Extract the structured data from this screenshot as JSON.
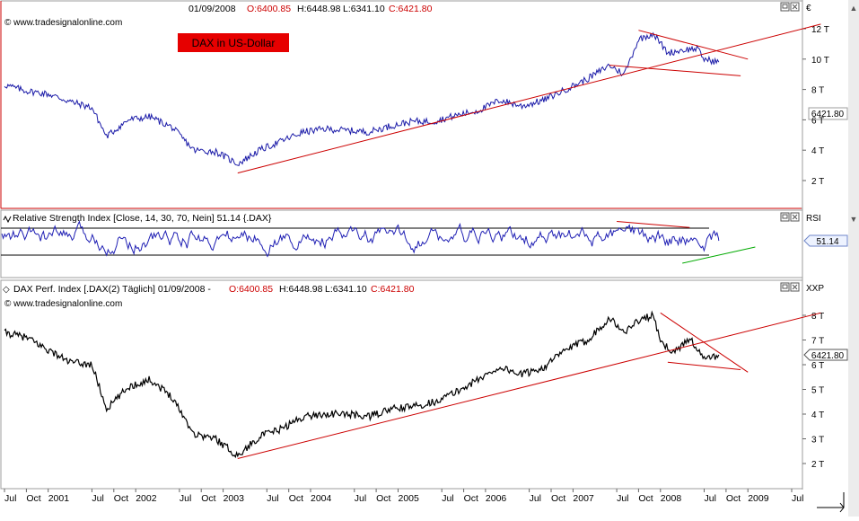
{
  "header": {
    "date": "01/09/2008",
    "open": "O:6400.85",
    "high": "H:6448.98",
    "low": "L:6341.10",
    "close": "C:6421.80",
    "watermark": "© www.tradesignalonline.com",
    "title_box": "DAX in US-Dollar"
  },
  "rsi_panel": {
    "title": "Relative Strength Index [Close, 14, 30, 70, Nein] 51.14 {.DAX}",
    "axis_title": "RSI",
    "value_tag": "51.14"
  },
  "perf_panel": {
    "title_prefix": "DAX Perf. Index [.DAX(2)  Täglich] 01/09/2008 - ",
    "open": "O:6400.85",
    "high": "H:6448.98",
    "low": "L:6341.10",
    "close": "C:6421.80",
    "axis_title": "XXP",
    "watermark": "© www.tradesignalonline.com",
    "value_tag": "6421.80"
  },
  "usd_panel": {
    "axis_title": "€",
    "value_tag": "6421.80"
  },
  "colors": {
    "usd_line": "#1a1aa8",
    "perf_line": "#000000",
    "trendline": "#cc0000",
    "rsi_line": "#1f1fb4",
    "rsi_support": "#00aa00",
    "title_box_bg": "#e60000",
    "title_box_text": "#000000",
    "ohlc_values": "#cc0000"
  },
  "icons": [
    "panel-maximize-icon",
    "panel-close-icon",
    "scroll-up-icon",
    "scroll-down-icon",
    "resize-corner-icon",
    "rsi-wave-icon",
    "perf-diamond-icon"
  ],
  "chart_data": [
    {
      "type": "line",
      "title": "DAX in US-Dollar",
      "y_ticks": [
        "2 T",
        "4 T",
        "6 T",
        "8 T",
        "10 T",
        "12 T"
      ],
      "ylim": [
        2,
        12
      ],
      "last_value": "6421.80",
      "x_ticks": [
        "Jul",
        "Oct",
        "2001",
        "Jul",
        "Oct",
        "2002",
        "Jul",
        "Oct",
        "2003",
        "Jul",
        "Oct",
        "2004",
        "Jul",
        "Oct",
        "2005",
        "Jul",
        "Oct",
        "2006",
        "Jul",
        "Oct",
        "2007",
        "Jul",
        "Oct",
        "2008",
        "Jul",
        "Oct",
        "2009",
        "Jul"
      ],
      "series": [
        {
          "values": [
            {
              "x": "2000-07",
              "y": 8.3
            },
            {
              "x": "2000-10",
              "y": 7.9
            },
            {
              "x": "2001-01",
              "y": 7.7
            },
            {
              "x": "2001-04",
              "y": 7.2
            },
            {
              "x": "2001-07",
              "y": 6.8
            },
            {
              "x": "2001-09",
              "y": 4.9
            },
            {
              "x": "2001-12",
              "y": 6.0
            },
            {
              "x": "2002-03",
              "y": 6.2
            },
            {
              "x": "2002-06",
              "y": 5.5
            },
            {
              "x": "2002-09",
              "y": 4.0
            },
            {
              "x": "2002-12",
              "y": 3.9
            },
            {
              "x": "2003-03",
              "y": 3.1
            },
            {
              "x": "2003-06",
              "y": 4.0
            },
            {
              "x": "2003-09",
              "y": 4.6
            },
            {
              "x": "2003-12",
              "y": 5.2
            },
            {
              "x": "2004-03",
              "y": 5.4
            },
            {
              "x": "2004-06",
              "y": 5.3
            },
            {
              "x": "2004-09",
              "y": 5.2
            },
            {
              "x": "2004-12",
              "y": 5.6
            },
            {
              "x": "2005-03",
              "y": 5.9
            },
            {
              "x": "2005-06",
              "y": 5.9
            },
            {
              "x": "2005-09",
              "y": 6.3
            },
            {
              "x": "2005-12",
              "y": 6.6
            },
            {
              "x": "2006-03",
              "y": 7.3
            },
            {
              "x": "2006-06",
              "y": 6.9
            },
            {
              "x": "2006-09",
              "y": 7.3
            },
            {
              "x": "2006-12",
              "y": 8.0
            },
            {
              "x": "2007-03",
              "y": 8.7
            },
            {
              "x": "2007-06",
              "y": 9.6
            },
            {
              "x": "2007-08",
              "y": 9.0
            },
            {
              "x": "2007-10",
              "y": 11.3
            },
            {
              "x": "2007-12",
              "y": 11.7
            },
            {
              "x": "2008-02",
              "y": 10.4
            },
            {
              "x": "2008-04",
              "y": 10.6
            },
            {
              "x": "2008-06",
              "y": 10.7
            },
            {
              "x": "2008-07",
              "y": 10.0
            },
            {
              "x": "2008-09",
              "y": 9.8
            }
          ]
        }
      ]
    },
    {
      "type": "line",
      "title": "Relative Strength Index [Close, 14, 30, 70, Nein] 51.14 {.DAX}",
      "levels": [
        30,
        70
      ],
      "ylim": [
        0,
        100
      ],
      "last_value": 51.14
    },
    {
      "type": "line",
      "title": "DAX Perf. Index [.DAX(2)  Täglich]",
      "y_ticks": [
        "2 T",
        "3 T",
        "4 T",
        "5 T",
        "6 T",
        "7 T",
        "8 T"
      ],
      "ylim": [
        2,
        8
      ],
      "last_value": "6421.80",
      "series": [
        {
          "values": [
            {
              "x": "2000-07",
              "y": 7.3
            },
            {
              "x": "2000-10",
              "y": 7.1
            },
            {
              "x": "2001-01",
              "y": 6.6
            },
            {
              "x": "2001-04",
              "y": 6.1
            },
            {
              "x": "2001-07",
              "y": 6.0
            },
            {
              "x": "2001-09",
              "y": 4.2
            },
            {
              "x": "2001-12",
              "y": 5.1
            },
            {
              "x": "2002-03",
              "y": 5.4
            },
            {
              "x": "2002-06",
              "y": 4.7
            },
            {
              "x": "2002-09",
              "y": 3.2
            },
            {
              "x": "2002-12",
              "y": 3.0
            },
            {
              "x": "2003-03",
              "y": 2.3
            },
            {
              "x": "2003-06",
              "y": 3.1
            },
            {
              "x": "2003-09",
              "y": 3.4
            },
            {
              "x": "2003-12",
              "y": 3.9
            },
            {
              "x": "2004-03",
              "y": 4.0
            },
            {
              "x": "2004-06",
              "y": 4.0
            },
            {
              "x": "2004-09",
              "y": 3.9
            },
            {
              "x": "2004-12",
              "y": 4.2
            },
            {
              "x": "2005-03",
              "y": 4.3
            },
            {
              "x": "2005-06",
              "y": 4.5
            },
            {
              "x": "2005-09",
              "y": 4.9
            },
            {
              "x": "2005-12",
              "y": 5.4
            },
            {
              "x": "2006-03",
              "y": 5.9
            },
            {
              "x": "2006-06",
              "y": 5.6
            },
            {
              "x": "2006-09",
              "y": 5.9
            },
            {
              "x": "2006-12",
              "y": 6.6
            },
            {
              "x": "2007-03",
              "y": 7.0
            },
            {
              "x": "2007-06",
              "y": 7.9
            },
            {
              "x": "2007-08",
              "y": 7.3
            },
            {
              "x": "2007-10",
              "y": 7.8
            },
            {
              "x": "2007-12",
              "y": 8.0
            },
            {
              "x": "2008-01",
              "y": 6.9
            },
            {
              "x": "2008-03",
              "y": 6.5
            },
            {
              "x": "2008-05",
              "y": 7.1
            },
            {
              "x": "2008-07",
              "y": 6.2
            },
            {
              "x": "2008-09",
              "y": 6.4
            }
          ]
        }
      ]
    }
  ]
}
